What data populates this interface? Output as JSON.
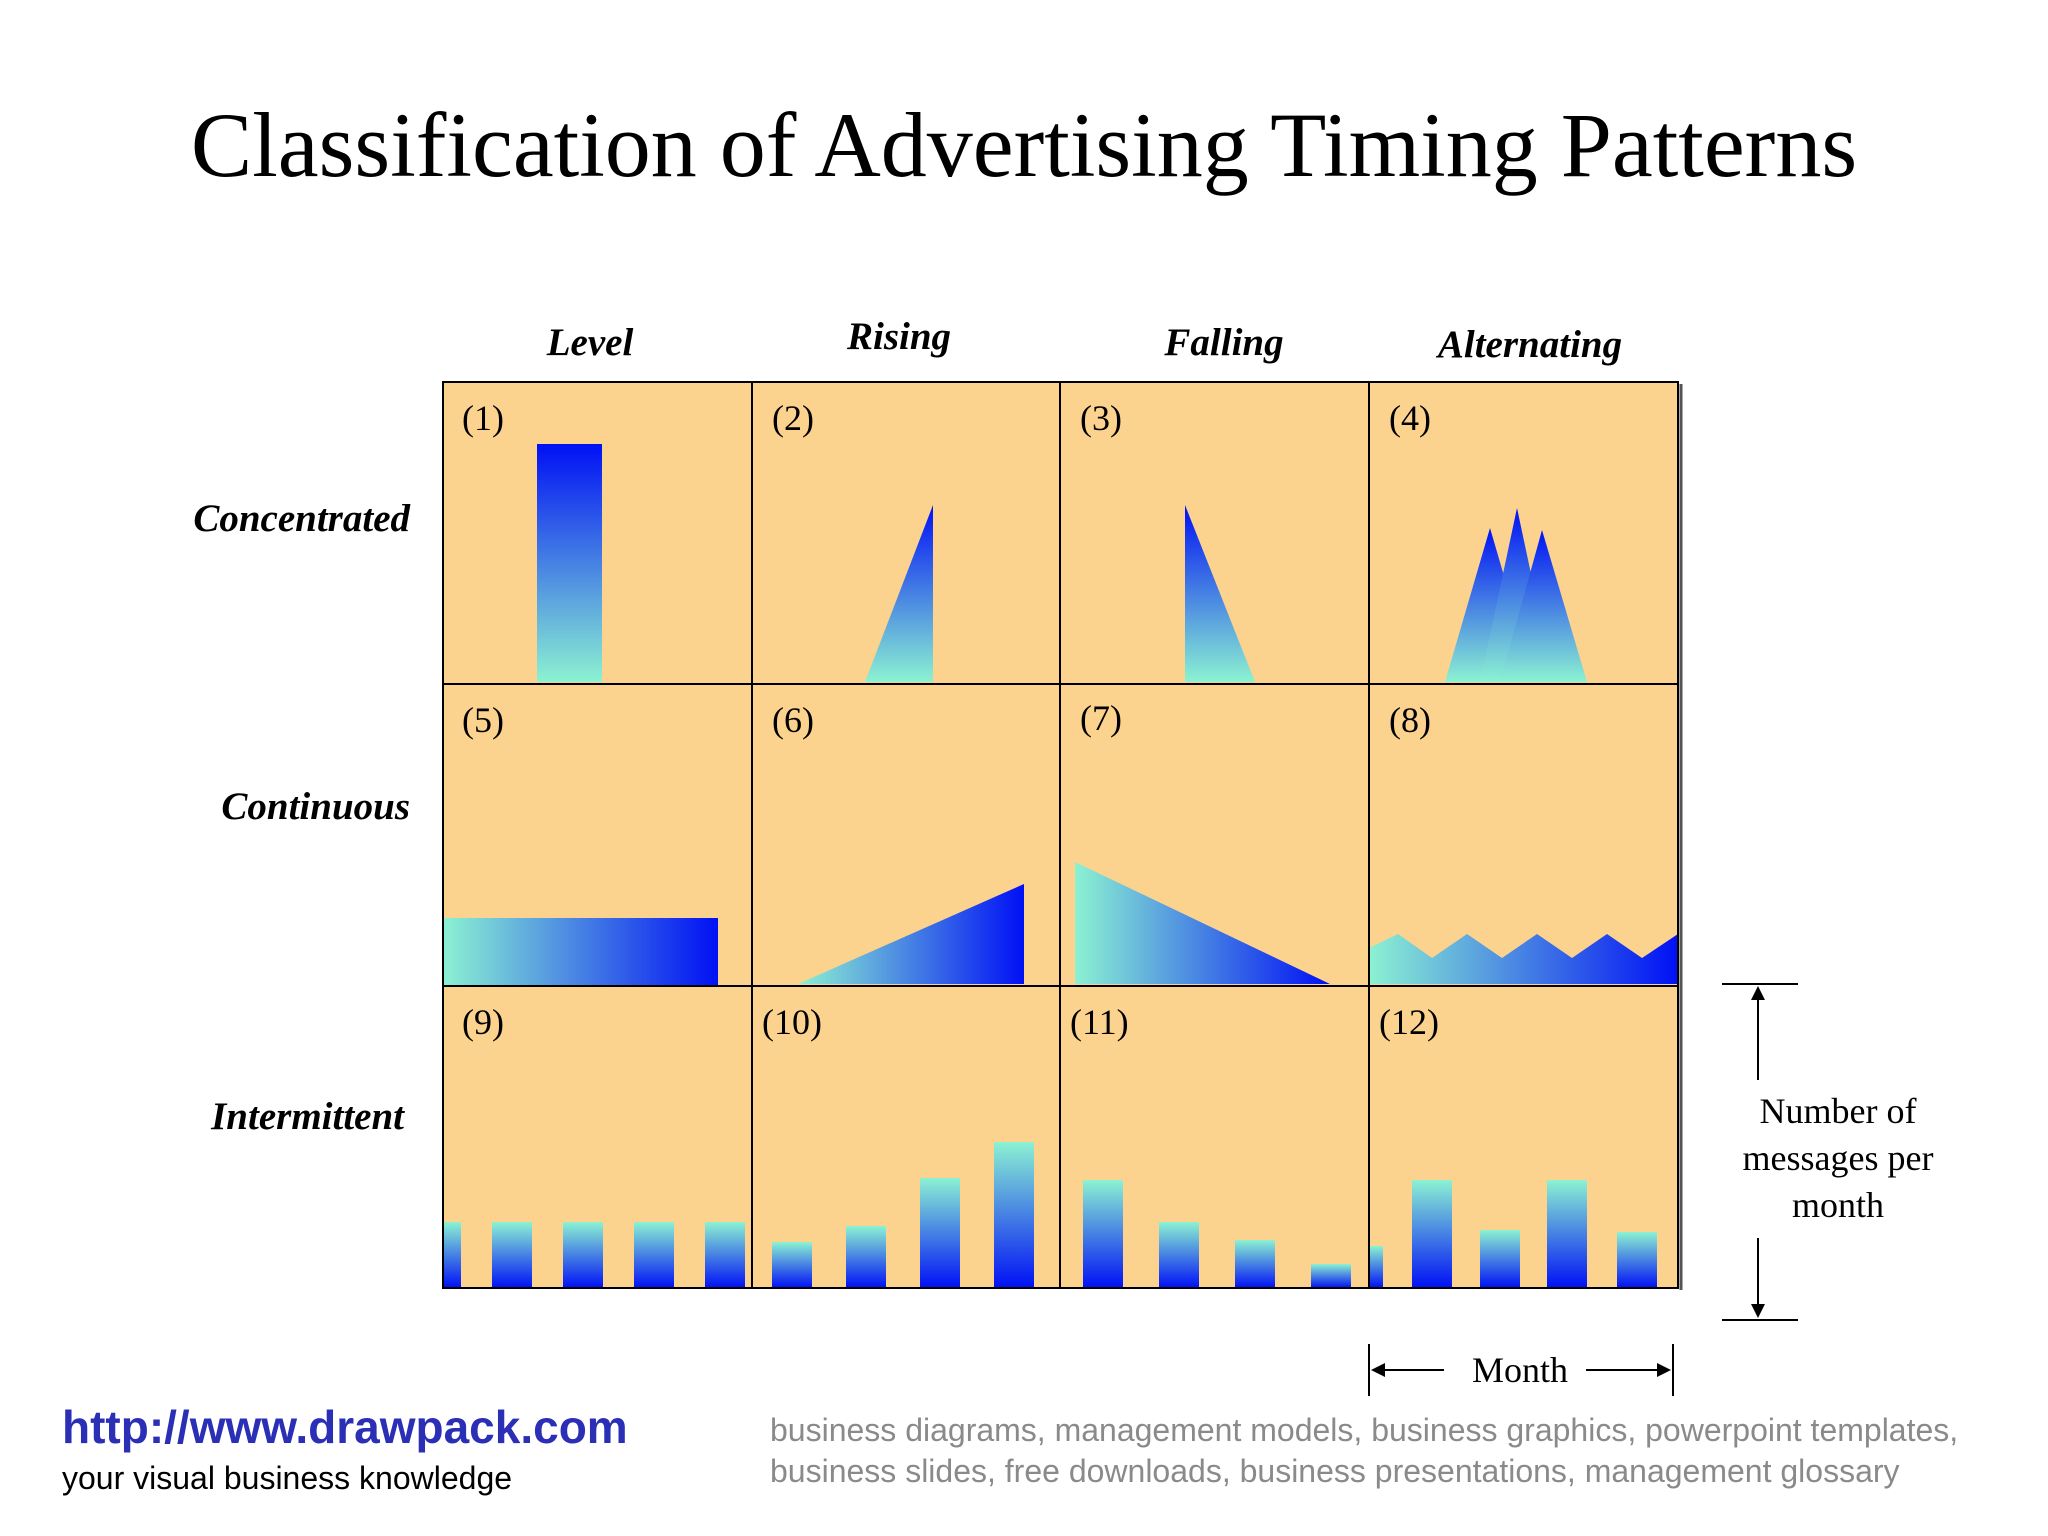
{
  "title": "Classification of Advertising Timing Patterns",
  "columns": [
    "Level",
    "Rising",
    "Falling",
    "Alternating"
  ],
  "rows": [
    "Concentrated",
    "Continuous",
    "Intermittent"
  ],
  "cells": [
    {
      "num": "(1)",
      "pattern": "concentrated-level"
    },
    {
      "num": "(2)",
      "pattern": "concentrated-rising"
    },
    {
      "num": "(3)",
      "pattern": "concentrated-falling"
    },
    {
      "num": "(4)",
      "pattern": "concentrated-alternating"
    },
    {
      "num": "(5)",
      "pattern": "continuous-level"
    },
    {
      "num": "(6)",
      "pattern": "continuous-rising"
    },
    {
      "num": "(7)",
      "pattern": "continuous-falling"
    },
    {
      "num": "(8)",
      "pattern": "continuous-alternating"
    },
    {
      "num": "(9)",
      "pattern": "intermittent-level"
    },
    {
      "num": "(10)",
      "pattern": "intermittent-rising"
    },
    {
      "num": "(11)",
      "pattern": "intermittent-falling"
    },
    {
      "num": "(12)",
      "pattern": "intermittent-alternating"
    }
  ],
  "axis": {
    "y_label": "Number of messages per month",
    "y_label_lines": [
      "Number of",
      "messages per",
      "month"
    ],
    "x_label": "Month"
  },
  "colors": {
    "cell_bg": "#fcd28f",
    "shape_top": "#0010f5",
    "shape_bottom": "#8cf2d2"
  },
  "footer": {
    "url": "http://www.drawpack.com",
    "tagline": "your visual business knowledge",
    "keywords": "business diagrams, management models, business graphics, powerpoint templates, business slides, free downloads, business presentations, management glossary"
  }
}
